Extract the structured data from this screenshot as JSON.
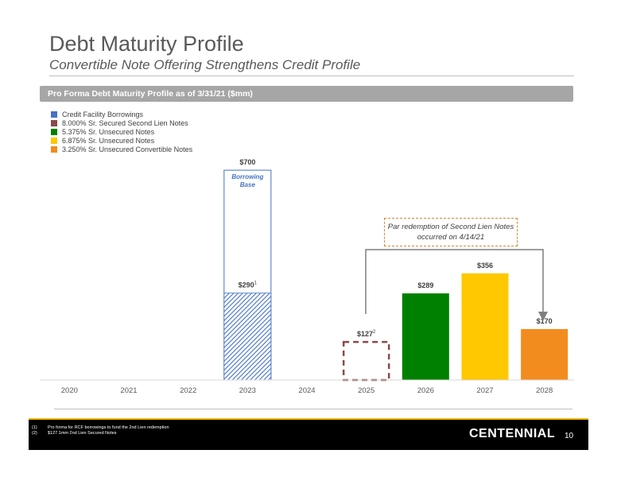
{
  "header": {
    "title": "Debt Maturity Profile",
    "subtitle": "Convertible Note Offering Strengthens Credit Profile"
  },
  "section": {
    "title": "Pro Forma Debt Maturity Profile as of 3/31/21 ($mm)"
  },
  "legend": [
    {
      "label": "Credit Facility Borrowings",
      "color": "#4472c4"
    },
    {
      "label": "8.000% Sr. Secured Second Lien Notes",
      "color": "#8b4a4a"
    },
    {
      "label": "5.375% Sr. Unsecured Notes",
      "color": "#008000"
    },
    {
      "label": "6.875% Sr. Unsecured Notes",
      "color": "#ffc800"
    },
    {
      "label": "3.250% Sr. Unsecured Convertible Notes",
      "color": "#f28c1e"
    }
  ],
  "chart_data": {
    "type": "bar",
    "categories": [
      "2020",
      "2021",
      "2022",
      "2023",
      "2024",
      "2025",
      "2026",
      "2027",
      "2028"
    ],
    "ylim": [
      0,
      800
    ],
    "bars": [
      {
        "category": "2023",
        "series": "Credit Facility Borrowings",
        "value": 290,
        "label": "$290",
        "sup": "1",
        "style": "hatched",
        "color": "#4472c4"
      },
      {
        "category": "2023",
        "series": "Borrowing Base",
        "value": 700,
        "label": "$700",
        "style": "outline",
        "color": "#4472c4",
        "inner_label": "Borrowing Base"
      },
      {
        "category": "2025",
        "series": "8.000% Sr. Secured Second Lien Notes",
        "value": 127,
        "label": "$127",
        "sup": "2",
        "style": "dashed",
        "color": "#8b4a4a"
      },
      {
        "category": "2026",
        "series": "5.375% Sr. Unsecured Notes",
        "value": 289,
        "label": "$289",
        "style": "solid",
        "color": "#008000"
      },
      {
        "category": "2027",
        "series": "6.875% Sr. Unsecured Notes",
        "value": 356,
        "label": "$356",
        "style": "solid",
        "color": "#ffc800"
      },
      {
        "category": "2028",
        "series": "3.250% Sr. Unsecured Convertible Notes",
        "value": 170,
        "label": "$170",
        "style": "solid",
        "color": "#f28c1e"
      }
    ],
    "annotation": "Par redemption of Second Lien Notes occurred on 4/14/21"
  },
  "footer": {
    "footnotes": [
      {
        "num": "(1)",
        "text": "Pro forma for RCF borrowings to fund the 2nd Lien redemption"
      },
      {
        "num": "(2)",
        "text": "$127.1mm 2nd Lien Secured Notes"
      }
    ],
    "brand": "CENTENNIAL",
    "page": "10"
  }
}
